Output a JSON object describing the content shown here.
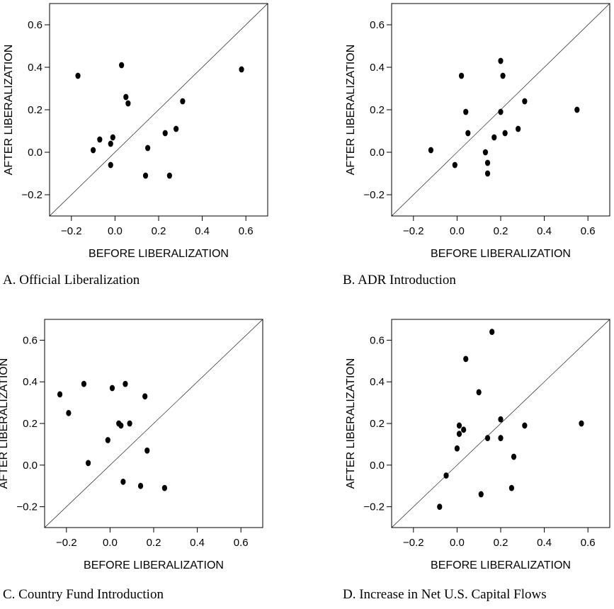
{
  "chart_data": [
    {
      "type": "scatter",
      "caption": "A. Official Liberalization",
      "xlabel": "BEFORE LIBERALIZATION",
      "ylabel": "AFTER LIBERALIZATION",
      "xlim": [
        -0.3,
        0.7
      ],
      "ylim": [
        -0.3,
        0.7
      ],
      "xticks": [
        "-0.2",
        "0.0",
        "0.2",
        "0.4",
        "0.6"
      ],
      "yticks": [
        "-0.2",
        "0.0",
        "0.2",
        "0.4",
        "0.6"
      ],
      "reference_line": "y = x",
      "points": [
        {
          "x": -0.17,
          "y": 0.36
        },
        {
          "x": 0.03,
          "y": 0.41
        },
        {
          "x": 0.05,
          "y": 0.26
        },
        {
          "x": 0.06,
          "y": 0.23
        },
        {
          "x": 0.58,
          "y": 0.39
        },
        {
          "x": 0.31,
          "y": 0.24
        },
        {
          "x": 0.28,
          "y": 0.11
        },
        {
          "x": 0.23,
          "y": 0.09
        },
        {
          "x": 0.15,
          "y": 0.02
        },
        {
          "x": 0.14,
          "y": -0.11
        },
        {
          "x": 0.25,
          "y": -0.11
        },
        {
          "x": -0.01,
          "y": 0.07
        },
        {
          "x": -0.02,
          "y": 0.04
        },
        {
          "x": -0.07,
          "y": 0.06
        },
        {
          "x": -0.1,
          "y": 0.01
        },
        {
          "x": -0.02,
          "y": -0.06
        }
      ]
    },
    {
      "type": "scatter",
      "caption": "B. ADR Introduction",
      "xlabel": "BEFORE LIBERALIZATION",
      "ylabel": "AFTER LIBERALIZATION",
      "xlim": [
        -0.3,
        0.7
      ],
      "ylim": [
        -0.3,
        0.7
      ],
      "xticks": [
        "-0.2",
        "0.0",
        "0.2",
        "0.4",
        "0.6"
      ],
      "yticks": [
        "-0.2",
        "0.0",
        "0.2",
        "0.4",
        "0.6"
      ],
      "reference_line": "y = x",
      "points": [
        {
          "x": 0.02,
          "y": 0.36
        },
        {
          "x": 0.2,
          "y": 0.43
        },
        {
          "x": 0.21,
          "y": 0.36
        },
        {
          "x": 0.31,
          "y": 0.24
        },
        {
          "x": 0.55,
          "y": 0.2
        },
        {
          "x": 0.2,
          "y": 0.19
        },
        {
          "x": 0.04,
          "y": 0.19
        },
        {
          "x": 0.05,
          "y": 0.09
        },
        {
          "x": 0.22,
          "y": 0.09
        },
        {
          "x": 0.28,
          "y": 0.11
        },
        {
          "x": 0.17,
          "y": 0.07
        },
        {
          "x": -0.12,
          "y": 0.01
        },
        {
          "x": 0.13,
          "y": 0.0
        },
        {
          "x": 0.14,
          "y": -0.05
        },
        {
          "x": 0.14,
          "y": -0.1
        },
        {
          "x": -0.01,
          "y": -0.06
        }
      ]
    },
    {
      "type": "scatter",
      "caption": "C. Country Fund Introduction",
      "xlabel": "BEFORE LIBERALIZATION",
      "ylabel": "AFTER LIBERALIZATION",
      "xlim": [
        -0.3,
        0.7
      ],
      "ylim": [
        -0.3,
        0.7
      ],
      "xticks": [
        "-0.2",
        "0.0",
        "0.2",
        "0.4",
        "0.6"
      ],
      "yticks": [
        "-0.2",
        "0.0",
        "0.2",
        "0.4",
        "0.6"
      ],
      "reference_line": "y = x",
      "points": [
        {
          "x": -0.23,
          "y": 0.34
        },
        {
          "x": -0.12,
          "y": 0.39
        },
        {
          "x": -0.19,
          "y": 0.25
        },
        {
          "x": 0.01,
          "y": 0.37
        },
        {
          "x": 0.07,
          "y": 0.39
        },
        {
          "x": 0.16,
          "y": 0.33
        },
        {
          "x": 0.04,
          "y": 0.2
        },
        {
          "x": 0.05,
          "y": 0.19
        },
        {
          "x": 0.09,
          "y": 0.2
        },
        {
          "x": -0.01,
          "y": 0.12
        },
        {
          "x": -0.1,
          "y": 0.01
        },
        {
          "x": 0.17,
          "y": 0.07
        },
        {
          "x": 0.06,
          "y": -0.08
        },
        {
          "x": 0.14,
          "y": -0.1
        },
        {
          "x": 0.25,
          "y": -0.11
        }
      ]
    },
    {
      "type": "scatter",
      "caption": "D. Increase in Net U.S. Capital Flows",
      "xlabel": "BEFORE LIBERALIZATION",
      "ylabel": "AFTER LIBERALIZATION",
      "xlim": [
        -0.3,
        0.7
      ],
      "ylim": [
        -0.3,
        0.7
      ],
      "xticks": [
        "-0.2",
        "0.0",
        "0.2",
        "0.4",
        "0.6"
      ],
      "yticks": [
        "-0.2",
        "0.0",
        "0.2",
        "0.4",
        "0.6"
      ],
      "reference_line": "y = x",
      "points": [
        {
          "x": 0.16,
          "y": 0.64
        },
        {
          "x": 0.04,
          "y": 0.51
        },
        {
          "x": 0.1,
          "y": 0.35
        },
        {
          "x": 0.2,
          "y": 0.22
        },
        {
          "x": 0.31,
          "y": 0.19
        },
        {
          "x": 0.57,
          "y": 0.2
        },
        {
          "x": 0.01,
          "y": 0.19
        },
        {
          "x": 0.03,
          "y": 0.17
        },
        {
          "x": 0.01,
          "y": 0.15
        },
        {
          "x": 0.0,
          "y": 0.08
        },
        {
          "x": 0.14,
          "y": 0.13
        },
        {
          "x": 0.2,
          "y": 0.13
        },
        {
          "x": 0.26,
          "y": 0.04
        },
        {
          "x": -0.05,
          "y": -0.05
        },
        {
          "x": 0.25,
          "y": -0.11
        },
        {
          "x": 0.11,
          "y": -0.14
        },
        {
          "x": -0.08,
          "y": -0.2
        }
      ]
    }
  ]
}
